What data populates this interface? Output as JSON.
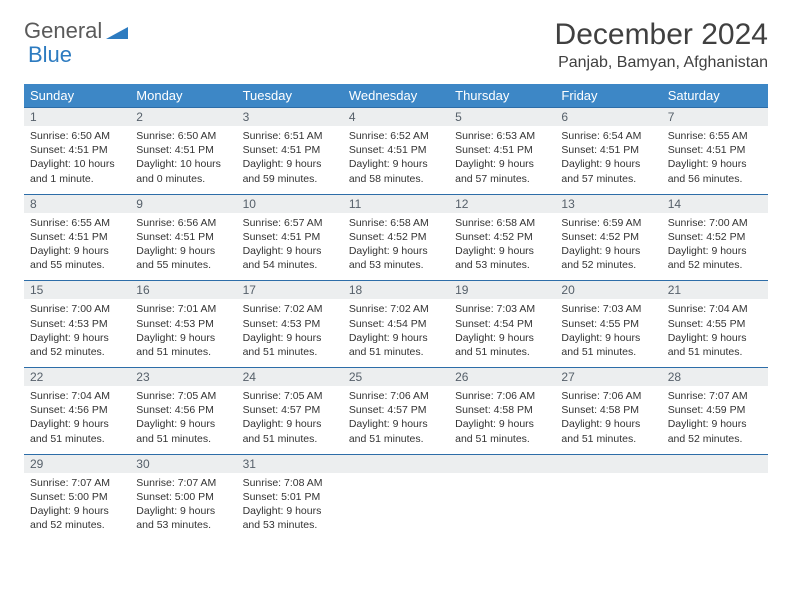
{
  "brand": {
    "word1": "General",
    "word2": "Blue"
  },
  "title": "December 2024",
  "location": "Panjab, Bamyan, Afghanistan",
  "colors": {
    "header_bg": "#3d87c6",
    "header_text": "#ffffff",
    "daynum_bg": "#eceeef",
    "daynum_text": "#56606a",
    "row_border": "#2d6da8",
    "body_text": "#333333",
    "logo_gray": "#5a5a5a",
    "logo_blue": "#2d7bc0"
  },
  "weekdays": [
    "Sunday",
    "Monday",
    "Tuesday",
    "Wednesday",
    "Thursday",
    "Friday",
    "Saturday"
  ],
  "weeks": [
    {
      "nums": [
        "1",
        "2",
        "3",
        "4",
        "5",
        "6",
        "7"
      ],
      "cells": [
        {
          "sr": "Sunrise: 6:50 AM",
          "ss": "Sunset: 4:51 PM",
          "dl": "Daylight: 10 hours and 1 minute."
        },
        {
          "sr": "Sunrise: 6:50 AM",
          "ss": "Sunset: 4:51 PM",
          "dl": "Daylight: 10 hours and 0 minutes."
        },
        {
          "sr": "Sunrise: 6:51 AM",
          "ss": "Sunset: 4:51 PM",
          "dl": "Daylight: 9 hours and 59 minutes."
        },
        {
          "sr": "Sunrise: 6:52 AM",
          "ss": "Sunset: 4:51 PM",
          "dl": "Daylight: 9 hours and 58 minutes."
        },
        {
          "sr": "Sunrise: 6:53 AM",
          "ss": "Sunset: 4:51 PM",
          "dl": "Daylight: 9 hours and 57 minutes."
        },
        {
          "sr": "Sunrise: 6:54 AM",
          "ss": "Sunset: 4:51 PM",
          "dl": "Daylight: 9 hours and 57 minutes."
        },
        {
          "sr": "Sunrise: 6:55 AM",
          "ss": "Sunset: 4:51 PM",
          "dl": "Daylight: 9 hours and 56 minutes."
        }
      ]
    },
    {
      "nums": [
        "8",
        "9",
        "10",
        "11",
        "12",
        "13",
        "14"
      ],
      "cells": [
        {
          "sr": "Sunrise: 6:55 AM",
          "ss": "Sunset: 4:51 PM",
          "dl": "Daylight: 9 hours and 55 minutes."
        },
        {
          "sr": "Sunrise: 6:56 AM",
          "ss": "Sunset: 4:51 PM",
          "dl": "Daylight: 9 hours and 55 minutes."
        },
        {
          "sr": "Sunrise: 6:57 AM",
          "ss": "Sunset: 4:51 PM",
          "dl": "Daylight: 9 hours and 54 minutes."
        },
        {
          "sr": "Sunrise: 6:58 AM",
          "ss": "Sunset: 4:52 PM",
          "dl": "Daylight: 9 hours and 53 minutes."
        },
        {
          "sr": "Sunrise: 6:58 AM",
          "ss": "Sunset: 4:52 PM",
          "dl": "Daylight: 9 hours and 53 minutes."
        },
        {
          "sr": "Sunrise: 6:59 AM",
          "ss": "Sunset: 4:52 PM",
          "dl": "Daylight: 9 hours and 52 minutes."
        },
        {
          "sr": "Sunrise: 7:00 AM",
          "ss": "Sunset: 4:52 PM",
          "dl": "Daylight: 9 hours and 52 minutes."
        }
      ]
    },
    {
      "nums": [
        "15",
        "16",
        "17",
        "18",
        "19",
        "20",
        "21"
      ],
      "cells": [
        {
          "sr": "Sunrise: 7:00 AM",
          "ss": "Sunset: 4:53 PM",
          "dl": "Daylight: 9 hours and 52 minutes."
        },
        {
          "sr": "Sunrise: 7:01 AM",
          "ss": "Sunset: 4:53 PM",
          "dl": "Daylight: 9 hours and 51 minutes."
        },
        {
          "sr": "Sunrise: 7:02 AM",
          "ss": "Sunset: 4:53 PM",
          "dl": "Daylight: 9 hours and 51 minutes."
        },
        {
          "sr": "Sunrise: 7:02 AM",
          "ss": "Sunset: 4:54 PM",
          "dl": "Daylight: 9 hours and 51 minutes."
        },
        {
          "sr": "Sunrise: 7:03 AM",
          "ss": "Sunset: 4:54 PM",
          "dl": "Daylight: 9 hours and 51 minutes."
        },
        {
          "sr": "Sunrise: 7:03 AM",
          "ss": "Sunset: 4:55 PM",
          "dl": "Daylight: 9 hours and 51 minutes."
        },
        {
          "sr": "Sunrise: 7:04 AM",
          "ss": "Sunset: 4:55 PM",
          "dl": "Daylight: 9 hours and 51 minutes."
        }
      ]
    },
    {
      "nums": [
        "22",
        "23",
        "24",
        "25",
        "26",
        "27",
        "28"
      ],
      "cells": [
        {
          "sr": "Sunrise: 7:04 AM",
          "ss": "Sunset: 4:56 PM",
          "dl": "Daylight: 9 hours and 51 minutes."
        },
        {
          "sr": "Sunrise: 7:05 AM",
          "ss": "Sunset: 4:56 PM",
          "dl": "Daylight: 9 hours and 51 minutes."
        },
        {
          "sr": "Sunrise: 7:05 AM",
          "ss": "Sunset: 4:57 PM",
          "dl": "Daylight: 9 hours and 51 minutes."
        },
        {
          "sr": "Sunrise: 7:06 AM",
          "ss": "Sunset: 4:57 PM",
          "dl": "Daylight: 9 hours and 51 minutes."
        },
        {
          "sr": "Sunrise: 7:06 AM",
          "ss": "Sunset: 4:58 PM",
          "dl": "Daylight: 9 hours and 51 minutes."
        },
        {
          "sr": "Sunrise: 7:06 AM",
          "ss": "Sunset: 4:58 PM",
          "dl": "Daylight: 9 hours and 51 minutes."
        },
        {
          "sr": "Sunrise: 7:07 AM",
          "ss": "Sunset: 4:59 PM",
          "dl": "Daylight: 9 hours and 52 minutes."
        }
      ]
    },
    {
      "nums": [
        "29",
        "30",
        "31",
        "",
        "",
        "",
        ""
      ],
      "cells": [
        {
          "sr": "Sunrise: 7:07 AM",
          "ss": "Sunset: 5:00 PM",
          "dl": "Daylight: 9 hours and 52 minutes."
        },
        {
          "sr": "Sunrise: 7:07 AM",
          "ss": "Sunset: 5:00 PM",
          "dl": "Daylight: 9 hours and 53 minutes."
        },
        {
          "sr": "Sunrise: 7:08 AM",
          "ss": "Sunset: 5:01 PM",
          "dl": "Daylight: 9 hours and 53 minutes."
        },
        {
          "sr": "",
          "ss": "",
          "dl": ""
        },
        {
          "sr": "",
          "ss": "",
          "dl": ""
        },
        {
          "sr": "",
          "ss": "",
          "dl": ""
        },
        {
          "sr": "",
          "ss": "",
          "dl": ""
        }
      ]
    }
  ]
}
